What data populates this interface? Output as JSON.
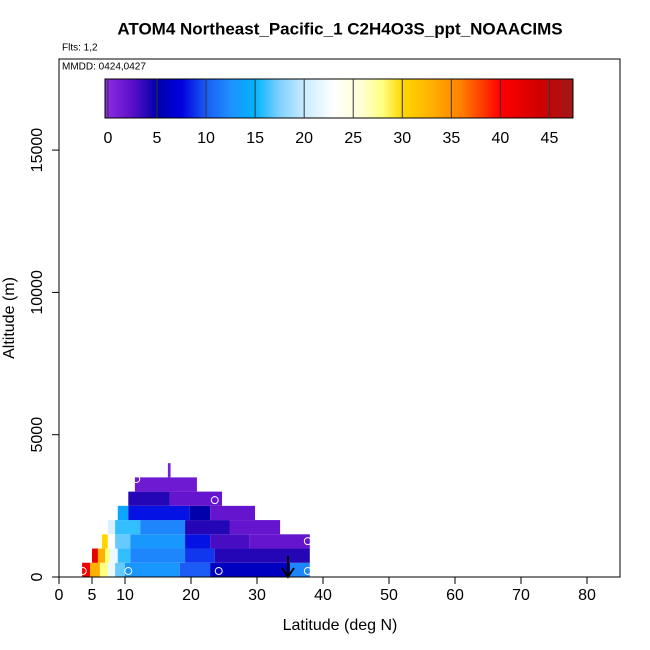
{
  "chart_data": {
    "type": "curtain",
    "title": "ATOM4 Northeast_Pacific_1 C2H4O3S_ppt_NOAACIMS",
    "subtitle": "Flts: 1,2",
    "annotation": "MMDD: 0424,0427",
    "xlabel": "Latitude (deg N)",
    "ylabel": "Altitude (m)",
    "xlim": [
      0,
      85
    ],
    "ylim": [
      0,
      18200
    ],
    "xticks": [
      0,
      5,
      10,
      20,
      30,
      40,
      50,
      60,
      70,
      80
    ],
    "yticks": [
      0,
      5000,
      10000,
      15000
    ],
    "colorbar_lim": [
      -0.3,
      47.4
    ],
    "colorbar_ticks": [
      0,
      5,
      10,
      15,
      20,
      25,
      30,
      35,
      40,
      45
    ],
    "colorscale": [
      [
        0,
        "#8a2be2"
      ],
      [
        2.5,
        "#5a0fc8"
      ],
      [
        5,
        "#0000aa"
      ],
      [
        7.5,
        "#0000e0"
      ],
      [
        10,
        "#1a5cf5"
      ],
      [
        12.5,
        "#1e90ff"
      ],
      [
        15,
        "#00b4ff"
      ],
      [
        17.5,
        "#80d0ff"
      ],
      [
        20,
        "#c8ecff"
      ],
      [
        23,
        "#ffffff"
      ],
      [
        26,
        "#ffffd0"
      ],
      [
        28,
        "#ffff80"
      ],
      [
        30,
        "#ffd700"
      ],
      [
        33,
        "#ffb000"
      ],
      [
        36,
        "#ff8000"
      ],
      [
        40,
        "#ff0000"
      ],
      [
        44,
        "#d00000"
      ],
      [
        47.5,
        "#a01818"
      ]
    ],
    "rows": [
      {
        "alt": [
          0,
          500
        ],
        "edges": [
          3.5,
          4.7,
          6.2,
          7.4,
          8.5,
          10,
          18.3,
          22.9,
          35,
          38
        ],
        "values": [
          41,
          33,
          28,
          22,
          17,
          13,
          10,
          6,
          12
        ]
      },
      {
        "alt": [
          500,
          1000
        ],
        "edges": [
          5,
          5.9,
          7,
          7.7,
          8.9,
          10.8,
          19.1,
          23.6,
          38
        ],
        "values": [
          42,
          33,
          28,
          22,
          16,
          12,
          9,
          4
        ]
      },
      {
        "alt": [
          1000,
          1500
        ],
        "edges": [
          6.5,
          7.4,
          8.5,
          10.8,
          19.1,
          22.9,
          28.9,
          38
        ],
        "values": [
          30,
          23,
          17,
          13,
          8,
          3,
          2
        ]
      },
      {
        "alt": [
          1500,
          2000
        ],
        "edges": [
          7.4,
          8.5,
          12.3,
          19.1,
          25.9,
          33.5
        ],
        "values": [
          21,
          16,
          12,
          4,
          2
        ]
      },
      {
        "alt": [
          2000,
          2500
        ],
        "edges": [
          8.9,
          10.5,
          19.8,
          22.9,
          29.7
        ],
        "values": [
          14,
          8,
          5,
          2
        ]
      },
      {
        "alt": [
          2500,
          3000
        ],
        "edges": [
          10.5,
          16.8,
          24.7
        ],
        "values": [
          4,
          2
        ]
      },
      {
        "alt": [
          3000,
          3500
        ],
        "edges": [
          11.5,
          20.9
        ],
        "values": [
          1.5
        ]
      },
      {
        "alt": [
          3500,
          4000
        ],
        "edges": [
          16.5,
          16.9
        ],
        "values": [
          1
        ]
      }
    ],
    "points": {
      "lat": [
        3.6,
        10.5,
        24.2,
        37.7,
        23.6,
        11.7,
        37.7
      ],
      "alt": [
        210,
        210,
        210,
        210,
        2700,
        3440,
        1260
      ]
    }
  }
}
